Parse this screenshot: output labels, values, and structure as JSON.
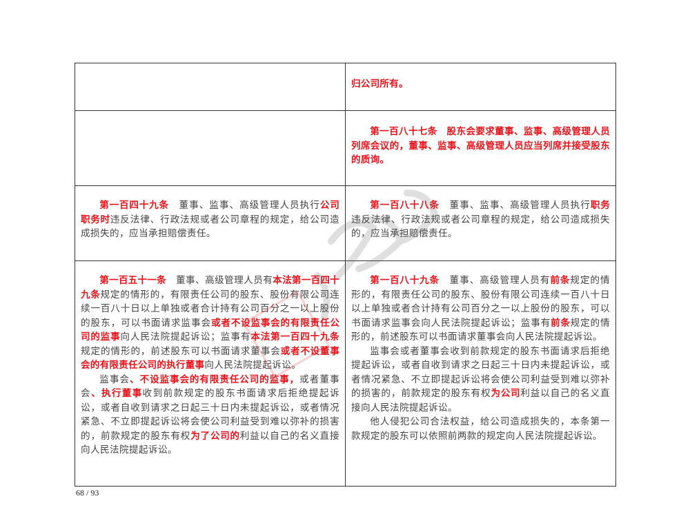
{
  "rows": [
    {
      "left": [],
      "right": [
        {
          "indent": false,
          "segments": [
            {
              "t": "归公司所有。",
              "red": true
            }
          ]
        }
      ]
    },
    {
      "left": [],
      "right": [
        {
          "indent": true,
          "segments": [
            {
              "t": "第一百八十七条　股东会要求董事、监事、高级管理人员列席会议的，董事、监事、高级管理人员应当列席并接受股东的质询。",
              "red": true
            }
          ]
        }
      ]
    },
    {
      "left": [
        {
          "indent": true,
          "segments": [
            {
              "t": "第一百四十九条",
              "red": true
            },
            {
              "t": "　董事、监事、高级管理人员执行",
              "red": false
            },
            {
              "t": "公司职务时",
              "red": true
            },
            {
              "t": "违反法律、行政法规或者公司章程的规定，给公司造成损失的，应当承担赔偿责任。",
              "red": false
            }
          ]
        }
      ],
      "right": [
        {
          "indent": true,
          "segments": [
            {
              "t": "第一百八十八条",
              "red": true
            },
            {
              "t": "　董事、监事、高级管理人员执行",
              "red": false
            },
            {
              "t": "职务",
              "red": true
            },
            {
              "t": "违反法律、行政法规或者公司章程的规定，给公司造成损失的，应当承担赔偿责任。",
              "red": false
            }
          ]
        }
      ]
    },
    {
      "left": [
        {
          "indent": true,
          "segments": [
            {
              "t": "第一百五十一条",
              "red": true
            },
            {
              "t": "　董事、高级管理人员有",
              "red": false
            },
            {
              "t": "本法第一百四十九条",
              "red": true
            },
            {
              "t": "规定的情形的，有限责任公司的股东、股份有限公司连续一百八十日以上单独或者合计持有公司百分之一以上股份的股东，可以书面请求监事会",
              "red": false
            },
            {
              "t": "或者不设监事会的有限责任公司的监事",
              "red": true
            },
            {
              "t": "向人民法院提起诉讼；监事有",
              "red": false
            },
            {
              "t": "本法第一百四十九条",
              "red": true
            },
            {
              "t": "规定的情形的，前述股东可以书面请求董事会",
              "red": false
            },
            {
              "t": "或者不设董事会的有限责任公司的执行董事",
              "red": true
            },
            {
              "t": "向人民法院提起诉讼。",
              "red": false
            }
          ]
        },
        {
          "indent": true,
          "segments": [
            {
              "t": "监事会",
              "red": false
            },
            {
              "t": "、不设监事会的有限责任公司的监事，",
              "red": true
            },
            {
              "t": "或者董事会",
              "red": false
            },
            {
              "t": "、执行董事",
              "red": true
            },
            {
              "t": "收到前款规定的股东书面请求后拒绝提起诉讼，或者自收到请求之日起三十日内未提起诉讼，或者情况紧急、不立即提起诉讼将会使公司利益受到难以弥补的损害的，前款规定的股东有权",
              "red": false
            },
            {
              "t": "为了公司的",
              "red": true
            },
            {
              "t": "利益以自己的名义直接向人民法院提起诉讼。",
              "red": false
            }
          ]
        }
      ],
      "right": [
        {
          "indent": true,
          "segments": [
            {
              "t": "第一百八十九条",
              "red": true
            },
            {
              "t": "　董事、高级管理人员有",
              "red": false
            },
            {
              "t": "前条",
              "red": true
            },
            {
              "t": "规定的情形的，有限责任公司的股东、股份有限公司连续一百八十日以上单独或者合计持有公司百分之一以上股份的股东，可以书面请求监事会向人民法院提起诉讼；监事有",
              "red": false
            },
            {
              "t": "前条",
              "red": true
            },
            {
              "t": "规定的情形的，前述股东可以书面请求董事会向人民法院提起诉讼。",
              "red": false
            }
          ]
        },
        {
          "indent": true,
          "segments": [
            {
              "t": "监事会或者董事会收到前款规定的股东书面请求后拒绝提起诉讼，或者自收到请求之日起三十日内未提起诉讼，或者情况紧急、不立即提起诉讼将会使公司利益受到难以弥补的损害的，前款规定的股东有权",
              "red": false
            },
            {
              "t": "为公司",
              "red": true
            },
            {
              "t": "利益以自己的名义直接向人民法院提起诉讼。",
              "red": false
            }
          ]
        },
        {
          "indent": true,
          "segments": [
            {
              "t": "他人侵犯公司合法权益，给公司造成损失的，本条第一款规定的股东可以依照前两款的规定向人民法院提起诉讼。",
              "red": false
            }
          ]
        }
      ]
    }
  ],
  "page_number": "68 / 93",
  "colors": {
    "highlight": "#e8141b",
    "text": "#444444",
    "border": "#333333"
  }
}
